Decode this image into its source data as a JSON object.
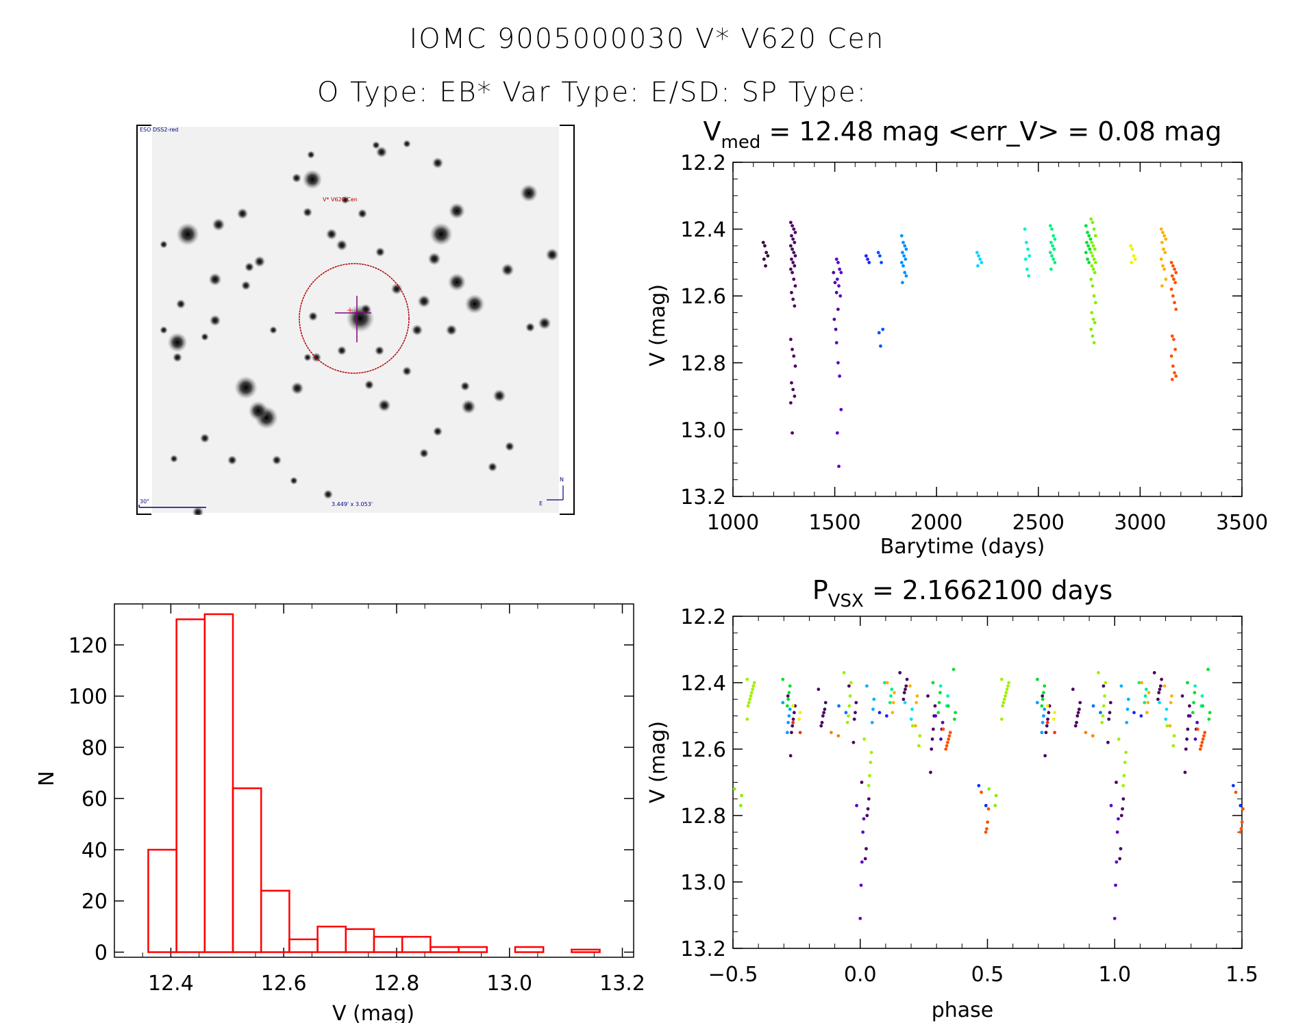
{
  "header": {
    "title": "IOMC 9005000030    V* V620 Cen",
    "subtitle": "O Type: EB*  Var Type: E/SD:  SP Type:"
  },
  "finder_chart": {
    "survey_label": "ESO DSS2-red",
    "target_label": "V* V620 Cen",
    "scale_label": "30\"",
    "fov_label": "3.449' x 3.053'",
    "compass_north": "N",
    "compass_east": "E",
    "colors": {
      "target": "#b00000",
      "crosshair": "#800080",
      "labels": "#000080"
    }
  },
  "chart_data": [
    {
      "id": "light-curve",
      "type": "scatter",
      "title_main": "V",
      "title_sub": "med",
      "title_rest": " = 12.48 mag <err_V> = 0.08 mag",
      "xlabel": "Barytime (days)",
      "ylabel": "V (mag)",
      "xlim": [
        1000,
        3500
      ],
      "ylim": [
        13.2,
        12.2
      ],
      "y_inverted": true,
      "xticks": [
        1000,
        1500,
        2000,
        2500,
        3000,
        3500
      ],
      "xtick_labels": [
        "1000",
        "1500",
        "2000",
        "2500",
        "3000",
        "3500"
      ],
      "yticks": [
        12.2,
        12.4,
        12.6,
        12.8,
        13.0,
        13.2
      ],
      "ytick_labels": [
        "12.2",
        "12.4",
        "12.6",
        "12.8",
        "13.0",
        "13.2"
      ],
      "grid": false,
      "color_scale": "rainbow by observation time",
      "groups": [
        {
          "x": 1160,
          "color": "#3a0040",
          "v": [
            12.44,
            12.45,
            12.47,
            12.48,
            12.49,
            12.51
          ]
        },
        {
          "x": 1295,
          "color": "#4a0060",
          "v": [
            12.38,
            12.39,
            12.4,
            12.41,
            12.42,
            12.43,
            12.44,
            12.45,
            12.46,
            12.47,
            12.48,
            12.49,
            12.5,
            12.51,
            12.52,
            12.53,
            12.55,
            12.57,
            12.59,
            12.61,
            12.63,
            12.73,
            12.76,
            12.78,
            12.81,
            12.86,
            12.88,
            12.9,
            12.92,
            13.01
          ]
        },
        {
          "x": 1505,
          "color": "#5000a0",
          "v": [
            12.53,
            12.56,
            12.59,
            12.64,
            12.67,
            12.7
          ]
        },
        {
          "x": 1520,
          "color": "#5a00c8",
          "v": [
            12.49,
            12.5,
            12.52,
            12.53,
            12.55,
            12.57,
            12.6,
            12.74,
            12.8,
            12.84,
            12.94,
            13.01,
            13.11
          ]
        },
        {
          "x": 1665,
          "color": "#2020ff",
          "v": [
            12.48,
            12.49,
            12.5
          ]
        },
        {
          "x": 1725,
          "color": "#0050ff",
          "v": [
            12.47,
            12.48,
            12.5,
            12.7,
            12.71,
            12.75
          ]
        },
        {
          "x": 1840,
          "color": "#0090ff",
          "v": [
            12.42,
            12.44,
            12.45,
            12.46,
            12.47,
            12.48,
            12.49,
            12.5,
            12.51,
            12.53,
            12.54,
            12.56
          ]
        },
        {
          "x": 2210,
          "color": "#00d8ff",
          "v": [
            12.47,
            12.48,
            12.49,
            12.5,
            12.51
          ]
        },
        {
          "x": 2445,
          "color": "#00f0d0",
          "v": [
            12.4,
            12.44,
            12.46,
            12.48,
            12.49,
            12.52,
            12.54
          ]
        },
        {
          "x": 2570,
          "color": "#00f080",
          "v": [
            12.39,
            12.4,
            12.42,
            12.43,
            12.44,
            12.45,
            12.46,
            12.47,
            12.48,
            12.49,
            12.5,
            12.52
          ]
        },
        {
          "x": 2745,
          "color": "#00e030",
          "v": [
            12.39,
            12.41,
            12.42,
            12.43,
            12.44,
            12.45,
            12.46,
            12.47,
            12.49,
            12.5
          ]
        },
        {
          "x": 2770,
          "color": "#80f000",
          "v": [
            12.37,
            12.38,
            12.4,
            12.42,
            12.44,
            12.45,
            12.46,
            12.47,
            12.48,
            12.49,
            12.5,
            12.51,
            12.52,
            12.53,
            12.55,
            12.57,
            12.6,
            12.62,
            12.65,
            12.67,
            12.68,
            12.7,
            12.72,
            12.74
          ]
        },
        {
          "x": 2965,
          "color": "#f0f000",
          "v": [
            12.45,
            12.46,
            12.48,
            12.49,
            12.5
          ]
        },
        {
          "x": 3115,
          "color": "#ffb000",
          "v": [
            12.4,
            12.41,
            12.42,
            12.43,
            12.44,
            12.46,
            12.47,
            12.49,
            12.51,
            12.52,
            12.55,
            12.57
          ]
        },
        {
          "x": 3165,
          "color": "#ff5000",
          "v": [
            12.5,
            12.51,
            12.52,
            12.53,
            12.54,
            12.55,
            12.56,
            12.58,
            12.6,
            12.62,
            12.64,
            12.72,
            12.73,
            12.76,
            12.78,
            12.81,
            12.83,
            12.84,
            12.85
          ]
        }
      ]
    },
    {
      "id": "histogram",
      "type": "bar",
      "xlabel": "V (mag)",
      "ylabel": "N",
      "xlim": [
        12.3,
        13.22
      ],
      "ylim": [
        -2,
        136
      ],
      "xticks": [
        12.4,
        12.6,
        12.8,
        13.0,
        13.2
      ],
      "xtick_labels": [
        "12.4",
        "12.6",
        "12.8",
        "13.0",
        "13.2"
      ],
      "yticks": [
        0,
        20,
        40,
        60,
        80,
        100,
        120
      ],
      "ytick_labels": [
        "0",
        "20",
        "40",
        "60",
        "80",
        "100",
        "120"
      ],
      "grid": false,
      "bar_color": "#ff0000",
      "bin_edges": [
        12.36,
        12.41,
        12.46,
        12.51,
        12.56,
        12.61,
        12.66,
        12.71,
        12.76,
        12.81,
        12.86,
        12.91,
        12.96,
        13.01,
        13.06,
        13.11,
        13.16
      ],
      "values": [
        40,
        130,
        132,
        64,
        24,
        5,
        10,
        9,
        6,
        6,
        2,
        2,
        0,
        2,
        0,
        1
      ]
    },
    {
      "id": "phased-light-curve",
      "type": "scatter",
      "title_main": "P",
      "title_sub": "VSX",
      "title_rest": " = 2.1662100 days",
      "xlabel": "phase",
      "ylabel": "V (mag)",
      "xlim": [
        -0.5,
        1.5
      ],
      "ylim": [
        13.2,
        12.2
      ],
      "y_inverted": true,
      "xticks": [
        -0.5,
        0.0,
        0.5,
        1.0,
        1.5
      ],
      "xtick_labels": [
        "−0.5",
        "0.0",
        "0.5",
        "1.0",
        "1.5"
      ],
      "yticks": [
        12.2,
        12.4,
        12.6,
        12.8,
        13.0,
        13.2
      ],
      "ytick_labels": [
        "12.2",
        "12.4",
        "12.6",
        "12.8",
        "13.0",
        "13.2"
      ],
      "grid": false,
      "period_days": 2.16621,
      "note": "points repeated at phase+1",
      "clusters": [
        {
          "phase": -0.43,
          "color": "#a0f000",
          "v": [
            12.39,
            12.4,
            12.41,
            12.42,
            12.43,
            12.44,
            12.45,
            12.46,
            12.47,
            12.51
          ]
        },
        {
          "phase": -0.29,
          "color": "#00e030",
          "v": [
            12.39,
            12.41,
            12.43,
            12.45,
            12.47
          ]
        },
        {
          "phase": -0.29,
          "color": "#00a0ff",
          "v": [
            12.46,
            12.48,
            12.5,
            12.52,
            12.55
          ]
        },
        {
          "phase": -0.27,
          "color": "#4a0060",
          "v": [
            12.44,
            12.47,
            12.49,
            12.51,
            12.53,
            12.55,
            12.62
          ]
        },
        {
          "phase": -0.25,
          "color": "#f0f000",
          "v": [
            12.47,
            12.49,
            12.51
          ]
        },
        {
          "phase": -0.25,
          "color": "#ff3000",
          "v": [
            12.52,
            12.55
          ]
        },
        {
          "phase": -0.15,
          "color": "#4a0060",
          "v": [
            12.42,
            12.46,
            12.48,
            12.49,
            12.5,
            12.52,
            12.53
          ]
        },
        {
          "phase": -0.1,
          "color": "#ff8000",
          "v": [
            12.55,
            12.56
          ]
        },
        {
          "phase": -0.07,
          "color": "#0070ff",
          "v": [
            12.47,
            12.49
          ]
        },
        {
          "phase": -0.05,
          "color": "#a0f000",
          "v": [
            12.37,
            12.4,
            12.44,
            12.47,
            12.5,
            12.52
          ]
        },
        {
          "phase": -0.03,
          "color": "#4a0060",
          "v": [
            12.41,
            12.46,
            12.49,
            12.51,
            12.58
          ]
        },
        {
          "phase": 0.0,
          "color": "#5a00c8",
          "v": [
            12.77,
            12.81,
            12.85,
            12.94,
            13.01,
            13.11
          ]
        },
        {
          "phase": 0.02,
          "color": "#4a0060",
          "v": [
            12.7,
            12.75,
            12.78,
            12.8,
            12.9,
            12.93
          ]
        },
        {
          "phase": 0.03,
          "color": "#a0f000",
          "v": [
            12.57,
            12.61,
            12.64,
            12.68,
            12.71
          ]
        },
        {
          "phase": 0.04,
          "color": "#00b0ff",
          "v": [
            12.41,
            12.45,
            12.48,
            12.52
          ]
        },
        {
          "phase": 0.09,
          "color": "#2020ff",
          "v": [
            12.49,
            12.5
          ]
        },
        {
          "phase": 0.11,
          "color": "#00f080",
          "v": [
            12.4,
            12.42,
            12.44,
            12.46
          ]
        },
        {
          "phase": 0.12,
          "color": "#ffb000",
          "v": [
            12.4,
            12.43,
            12.46,
            12.49
          ]
        },
        {
          "phase": 0.17,
          "color": "#4a0060",
          "v": [
            12.37,
            12.39,
            12.41,
            12.42,
            12.43,
            12.45
          ]
        },
        {
          "phase": 0.19,
          "color": "#00e0f0",
          "v": [
            12.46,
            12.48,
            12.51
          ]
        },
        {
          "phase": 0.21,
          "color": "#ffb000",
          "v": [
            12.41,
            12.44,
            12.46,
            12.53
          ]
        },
        {
          "phase": 0.22,
          "color": "#a0f000",
          "v": [
            12.53,
            12.56,
            12.59
          ]
        },
        {
          "phase": 0.28,
          "color": "#4a0060",
          "v": [
            12.44,
            12.47,
            12.5,
            12.54,
            12.57,
            12.6,
            12.67
          ]
        },
        {
          "phase": 0.3,
          "color": "#00e030",
          "v": [
            12.4,
            12.43,
            12.46,
            12.49
          ]
        },
        {
          "phase": 0.31,
          "color": "#5000c0",
          "v": [
            12.5,
            12.52,
            12.54,
            12.57
          ]
        },
        {
          "phase": 0.34,
          "color": "#ff5000",
          "v": [
            12.54,
            12.55,
            12.56,
            12.57,
            12.58,
            12.59,
            12.6
          ]
        },
        {
          "phase": 0.33,
          "color": "#00f0b0",
          "v": [
            12.41,
            12.44,
            12.47
          ]
        },
        {
          "phase": 0.36,
          "color": "#00e030",
          "v": [
            12.47,
            12.49,
            12.51,
            12.36
          ]
        },
        {
          "phase": 0.48,
          "color": "#0030ff",
          "v": [
            12.71,
            12.77
          ]
        },
        {
          "phase": 0.49,
          "color": "#ff5000",
          "v": [
            12.73,
            12.78,
            12.82,
            12.84,
            12.85
          ]
        },
        {
          "phase": 0.52,
          "color": "#80f000",
          "v": [
            12.72,
            12.74,
            12.77
          ]
        }
      ]
    }
  ]
}
